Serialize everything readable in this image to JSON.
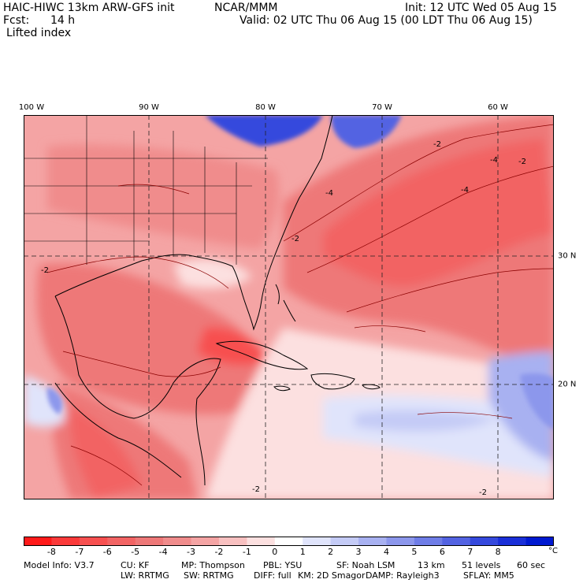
{
  "header": {
    "model": "HAIC-HIWC 13km ARW-GFS init",
    "agency": "NCAR/MMM",
    "init": "Init: 12 UTC Wed 05 Aug 15",
    "fcst_label": "Fcst:",
    "fcst_value": "14 h",
    "valid": "Valid: 02 UTC Thu 06 Aug 15 (00 LDT Thu 06 Aug 15)",
    "field": "Lifted index"
  },
  "map": {
    "longitude_labels": [
      "100 W",
      "90 W",
      "80 W",
      "70 W",
      "60 W"
    ],
    "latitude_labels": [
      "30 N",
      "20 N"
    ],
    "contour_labels": [
      "-4",
      "-4",
      "-2",
      "-2",
      "-2",
      "-4",
      "-2",
      "-2",
      "-2"
    ]
  },
  "colorbar": {
    "ticks": [
      "-8",
      "-7",
      "-6",
      "-5",
      "-4",
      "-3",
      "-2",
      "-1",
      "0",
      "1",
      "2",
      "3",
      "4",
      "5",
      "6",
      "7",
      "8"
    ],
    "unit": "°C",
    "colors": [
      "#ff1a1a",
      "#fb3a3a",
      "#f75050",
      "#f26464",
      "#ee7878",
      "#f08c8c",
      "#f4a4a4",
      "#f8c0c0",
      "#fce0e0",
      "#ffffff",
      "#e0e4fb",
      "#c4cbf6",
      "#a8b1f1",
      "#8c97ec",
      "#6f7de7",
      "#5363e2",
      "#3549dd",
      "#1a2fd8",
      "#0019d0"
    ]
  },
  "footer": {
    "line1": [
      "Model Info: V3.7",
      "CU: KF",
      "MP: Thompson",
      "PBL: YSU",
      "SF: Noah LSM",
      "13 km",
      "51 levels",
      "60 sec"
    ],
    "line2": [
      "LW: RRTMG",
      "SW: RRTMG",
      "DIFF: full",
      "KM: 2D Smagor",
      "DAMP: Rayleigh3",
      "SFLAY: MM5"
    ]
  }
}
